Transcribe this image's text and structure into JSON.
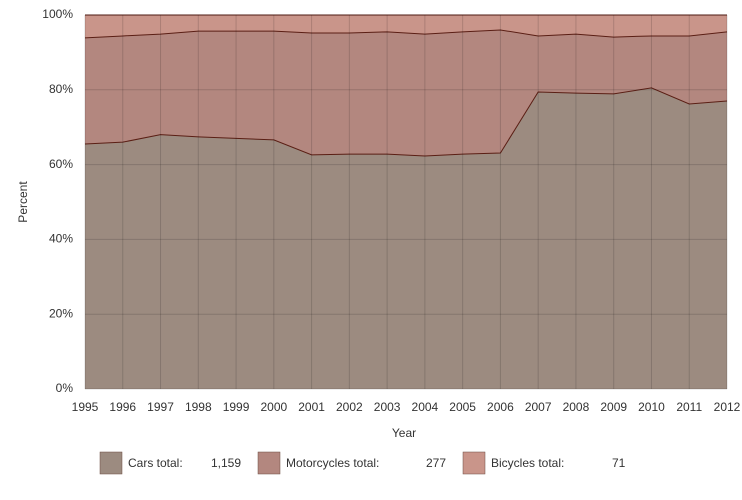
{
  "chart_data": {
    "type": "stacked_area",
    "x_label": "Year",
    "y_label": "Percent",
    "categories": [
      "1995",
      "1996",
      "1997",
      "1998",
      "1999",
      "2000",
      "2001",
      "2002",
      "2003",
      "2004",
      "2005",
      "2006",
      "2007",
      "2008",
      "2009",
      "2010",
      "2011",
      "2012"
    ],
    "series": [
      {
        "name": "Cars total:",
        "color": "#9c8b80",
        "total": {
          "value": 1159,
          "label": "1,159"
        },
        "values": [
          65.5,
          66,
          68,
          67.4,
          67,
          66.6,
          62.6,
          62.8,
          62.8,
          62.3,
          62.8,
          63.1,
          79.4,
          79.1,
          78.9,
          80.5,
          76.2,
          77
        ]
      },
      {
        "name": "Motorcycles total:",
        "color": "#b3877f",
        "total": 277,
        "values": [
          28.4,
          28.4,
          26.9,
          28.3,
          28.7,
          29.1,
          32.6,
          32.4,
          32.7,
          32.6,
          32.7,
          32.9,
          15.0,
          15.8,
          15.2,
          13.9,
          18.2,
          18.5
        ]
      },
      {
        "name": "Bicycles total:",
        "color": "#c9958a",
        "total": 71,
        "values": [
          6.1,
          5.6,
          5.1,
          4.3,
          4.3,
          4.3,
          4.8,
          4.8,
          4.5,
          5.1,
          4.5,
          4.0,
          5.6,
          5.1,
          5.9,
          5.6,
          5.6,
          4.5
        ]
      }
    ],
    "ylim": [
      0,
      100
    ],
    "yticks": [
      {
        "value": 0,
        "label": "0%"
      },
      {
        "value": 20,
        "label": "20%"
      },
      {
        "value": 40,
        "label": "40%"
      },
      {
        "value": 60,
        "label": "60%"
      },
      {
        "value": 80,
        "label": "80%"
      },
      {
        "value": 100,
        "label": "100%"
      }
    ],
    "grid": true
  }
}
